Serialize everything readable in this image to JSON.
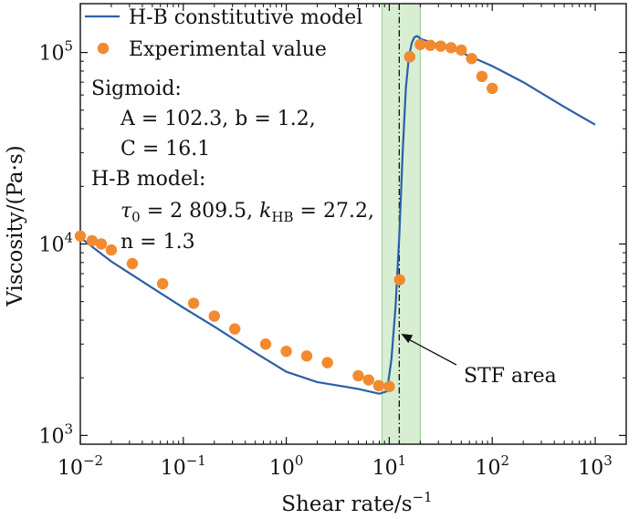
{
  "chart_data": {
    "type": "line",
    "xlabel": "Shear rate/s",
    "xlabel_sup": "−1",
    "ylabel": "Viscosity/(Pa·s)",
    "xscale": "log",
    "yscale": "log",
    "xlim": [
      0.01,
      2000
    ],
    "ylim": [
      900,
      180000
    ],
    "x_ticks": [
      {
        "value": 0.01,
        "base": "10",
        "exp": "−2"
      },
      {
        "value": 0.1,
        "base": "10",
        "exp": "−1"
      },
      {
        "value": 1,
        "base": "10",
        "exp": "0"
      },
      {
        "value": 10,
        "base": "10",
        "exp": "1"
      },
      {
        "value": 100,
        "base": "10",
        "exp": "2"
      },
      {
        "value": 1000,
        "base": "10",
        "exp": "3"
      }
    ],
    "y_ticks": [
      {
        "value": 1000,
        "base": "10",
        "exp": "3"
      },
      {
        "value": 10000,
        "base": "10",
        "exp": "4"
      },
      {
        "value": 100000,
        "base": "10",
        "exp": "5"
      }
    ],
    "grid": false,
    "legend_position": "top-left",
    "series": [
      {
        "name": "H-B constitutive model",
        "kind": "line",
        "color": "#2b5fa8",
        "x": [
          0.01,
          0.02,
          0.05,
          0.1,
          0.2,
          0.5,
          1,
          2,
          5,
          8,
          9.5,
          10.5,
          11.5,
          12.5,
          13.5,
          14.5,
          15.5,
          16.5,
          17.5,
          18.5,
          19.5,
          20,
          30,
          50,
          100,
          200,
          500,
          1000
        ],
        "y": [
          10800,
          8100,
          5900,
          4650,
          3700,
          2700,
          2150,
          1900,
          1750,
          1650,
          1700,
          2500,
          4700,
          11000,
          30000,
          65000,
          95000,
          112000,
          120000,
          122000,
          120000,
          118000,
          110000,
          100000,
          85000,
          70000,
          52000,
          42000
        ]
      },
      {
        "name": "Experimental value",
        "kind": "scatter",
        "color": "#f28a30",
        "x": [
          0.01,
          0.013,
          0.016,
          0.02,
          0.032,
          0.063,
          0.126,
          0.2,
          0.316,
          0.631,
          1.0,
          1.58,
          2.51,
          5.0,
          6.3,
          7.9,
          10.0,
          12.6,
          15.8,
          20.0,
          25.1,
          31.6,
          39.8,
          50.1,
          63.1,
          79.4,
          100.0
        ],
        "y": [
          11000,
          10400,
          10000,
          9300,
          7900,
          6200,
          4900,
          4200,
          3600,
          3000,
          2750,
          2600,
          2400,
          2050,
          1950,
          1820,
          1800,
          6500,
          95000,
          110000,
          109000,
          108000,
          106000,
          103000,
          93000,
          75000,
          65000
        ]
      }
    ],
    "shaded_region": {
      "x0": 8.5,
      "x1": 20,
      "color": "#c9e8c4",
      "border": "#9fd39a"
    },
    "vline": {
      "x": 12.5,
      "style": "dash-dot"
    },
    "fit_params": {
      "sigmoid_title": "Sigmoid:",
      "sigmoid_line1": "A = 102.3,  b = 1.2,",
      "sigmoid_line2": "C = 16.1",
      "hb_title": "H-B model:",
      "hb_tau": "τ",
      "hb_tau_sub": "0",
      "hb_tau_value": " = 2 809.5,  ",
      "hb_k": "k",
      "hb_k_sub": "HB",
      "hb_k_value": " = 27.2,",
      "hb_n": "n = 1.3"
    },
    "annotation": {
      "text": "STF area",
      "arrow_to_x": 12.5,
      "arrow_to_y": 3400
    }
  }
}
